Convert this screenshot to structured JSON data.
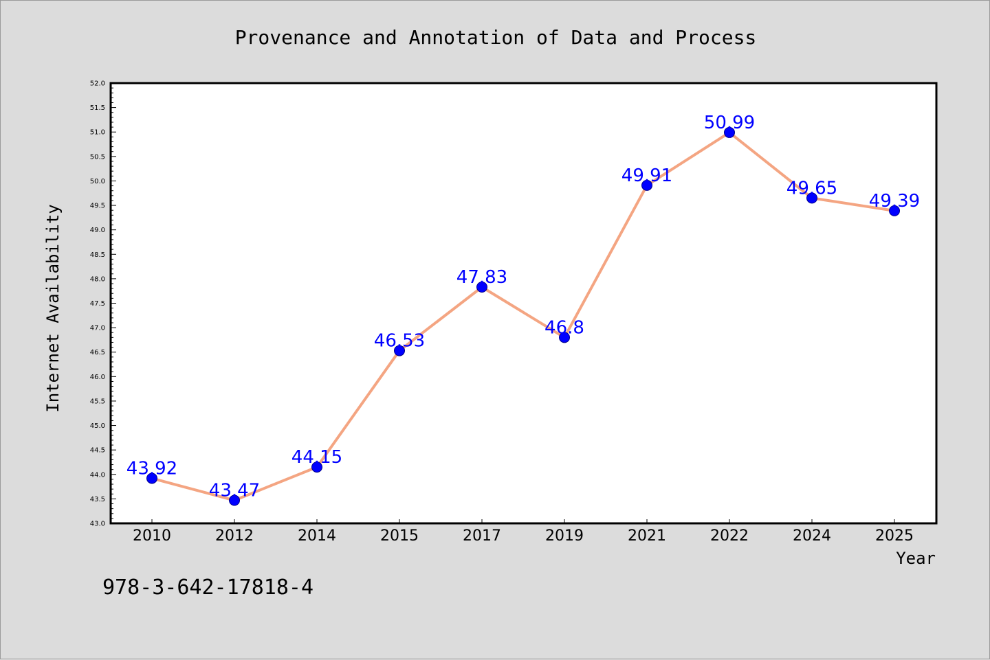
{
  "chart_data": {
    "type": "line",
    "title": "Provenance and Annotation of Data and Process",
    "xlabel": "Year",
    "ylabel": "Internet Availability",
    "categories": [
      "2010",
      "2012",
      "2014",
      "2015",
      "2017",
      "2019",
      "2021",
      "2022",
      "2024",
      "2025"
    ],
    "series": [
      {
        "values": [
          43.92,
          43.47,
          44.15,
          46.53,
          47.83,
          46.8,
          49.91,
          50.99,
          49.65,
          49.39
        ],
        "data_labels": [
          "43.92",
          "43.47",
          "44.15",
          "46.53",
          "47.83",
          "46.8",
          "49.91",
          "50.99",
          "49.65",
          "49.39"
        ],
        "line_color": "#f4a582",
        "marker_color": "#0000ff",
        "label_color": "#0000ff"
      }
    ],
    "ylim": [
      43.0,
      52.0
    ],
    "y_major_ticks": [
      "43.0",
      "43.5",
      "44.0",
      "44.5",
      "45.0",
      "45.5",
      "46.0",
      "46.5",
      "47.0",
      "47.5",
      "48.0",
      "48.5",
      "49.0",
      "49.5",
      "50.0",
      "50.5",
      "51.0",
      "51.5",
      "52.0"
    ],
    "grid": false,
    "legend": "none"
  },
  "footer_text": "978-3-642-17818-4",
  "colors": {
    "figure_background": "#dcdcdc",
    "plot_background": "#ffffff",
    "axes": "#000000",
    "text": "#000000"
  }
}
